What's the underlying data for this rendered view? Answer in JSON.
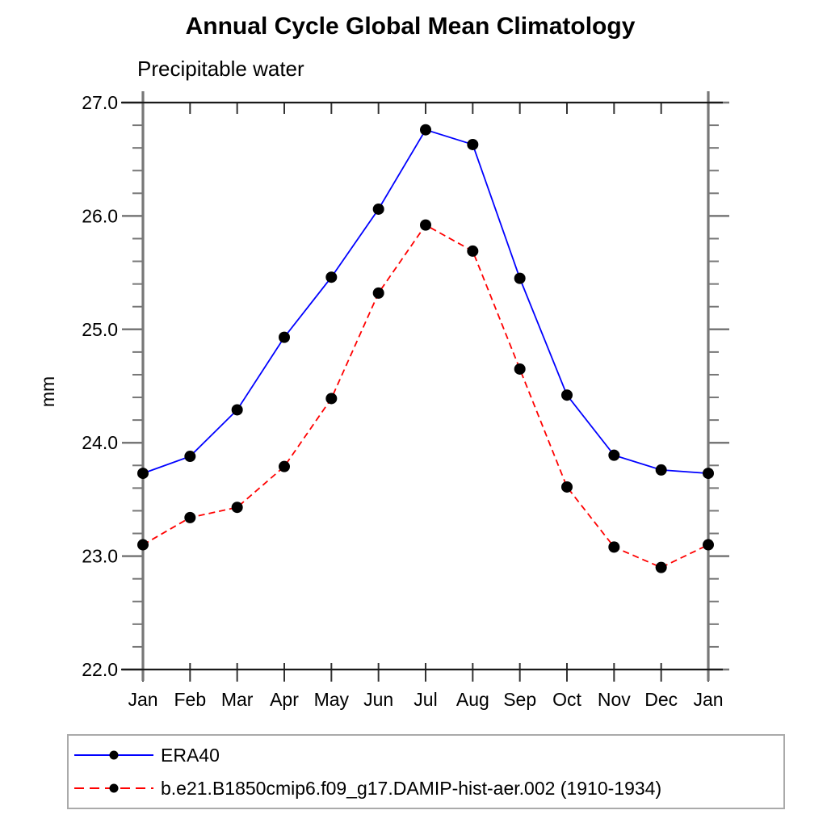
{
  "header": {
    "title": "Annual Cycle Global Mean Climatology",
    "subtitle": "Precipitable water"
  },
  "chart_data": {
    "type": "line",
    "x_categories": [
      "Jan",
      "Feb",
      "Mar",
      "Apr",
      "May",
      "Jun",
      "Jul",
      "Aug",
      "Sep",
      "Oct",
      "Nov",
      "Dec",
      "Jan"
    ],
    "ylabel": "mm",
    "ylim": [
      22.0,
      27.0
    ],
    "ytick_major_step": 1.0,
    "ytick_minor_step": 0.2,
    "ytick_labels": [
      "22.0",
      "23.0",
      "24.0",
      "25.0",
      "26.0",
      "27.0"
    ],
    "grid": false,
    "legend_position": "bottom-left-box",
    "marker": "filled-circle",
    "marker_color": "#000000",
    "series": [
      {
        "name": "ERA40",
        "color": "#0000ff",
        "line_style": "solid",
        "values": [
          23.73,
          23.88,
          24.29,
          24.93,
          25.46,
          26.06,
          26.76,
          26.63,
          25.45,
          24.42,
          23.89,
          23.76,
          23.73
        ]
      },
      {
        "name": "b.e21.B1850cmip6.f09_g17.DAMIP-hist-aer.002 (1910-1934)",
        "color": "#ff0000",
        "line_style": "dashed",
        "values": [
          23.1,
          23.34,
          23.43,
          23.79,
          24.39,
          25.32,
          25.92,
          25.69,
          24.65,
          23.61,
          23.08,
          22.9,
          23.1
        ]
      }
    ]
  }
}
